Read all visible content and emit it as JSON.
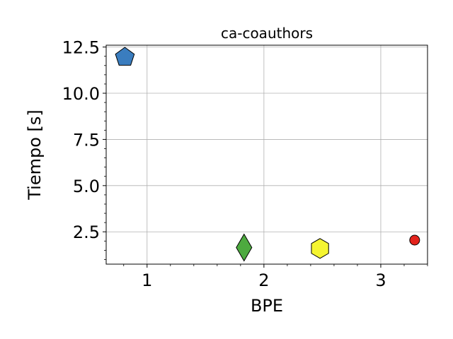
{
  "chart_data": {
    "type": "scatter",
    "title": "ca-coauthors",
    "xlabel": "BPE",
    "ylabel": "Tiempo [s]",
    "xlim": [
      0.65,
      3.4
    ],
    "ylim": [
      0.75,
      12.6
    ],
    "x_ticks": [
      1,
      2,
      3
    ],
    "x_tick_labels": [
      "1",
      "2",
      "3"
    ],
    "y_ticks": [
      2.5,
      5.0,
      7.5,
      10.0,
      12.5
    ],
    "y_tick_labels": [
      "2.5",
      "5.0",
      "7.5",
      "10.0",
      "12.5"
    ],
    "grid": true,
    "points": [
      {
        "x": 0.81,
        "y": 11.95,
        "marker": "pentagon",
        "color": "#3a7dbf"
      },
      {
        "x": 1.83,
        "y": 1.65,
        "marker": "diamond",
        "color": "#4daa3f"
      },
      {
        "x": 2.48,
        "y": 1.6,
        "marker": "hexagon",
        "color": "#f5f531"
      },
      {
        "x": 3.29,
        "y": 2.05,
        "marker": "circle",
        "color": "#e3231c"
      }
    ]
  }
}
